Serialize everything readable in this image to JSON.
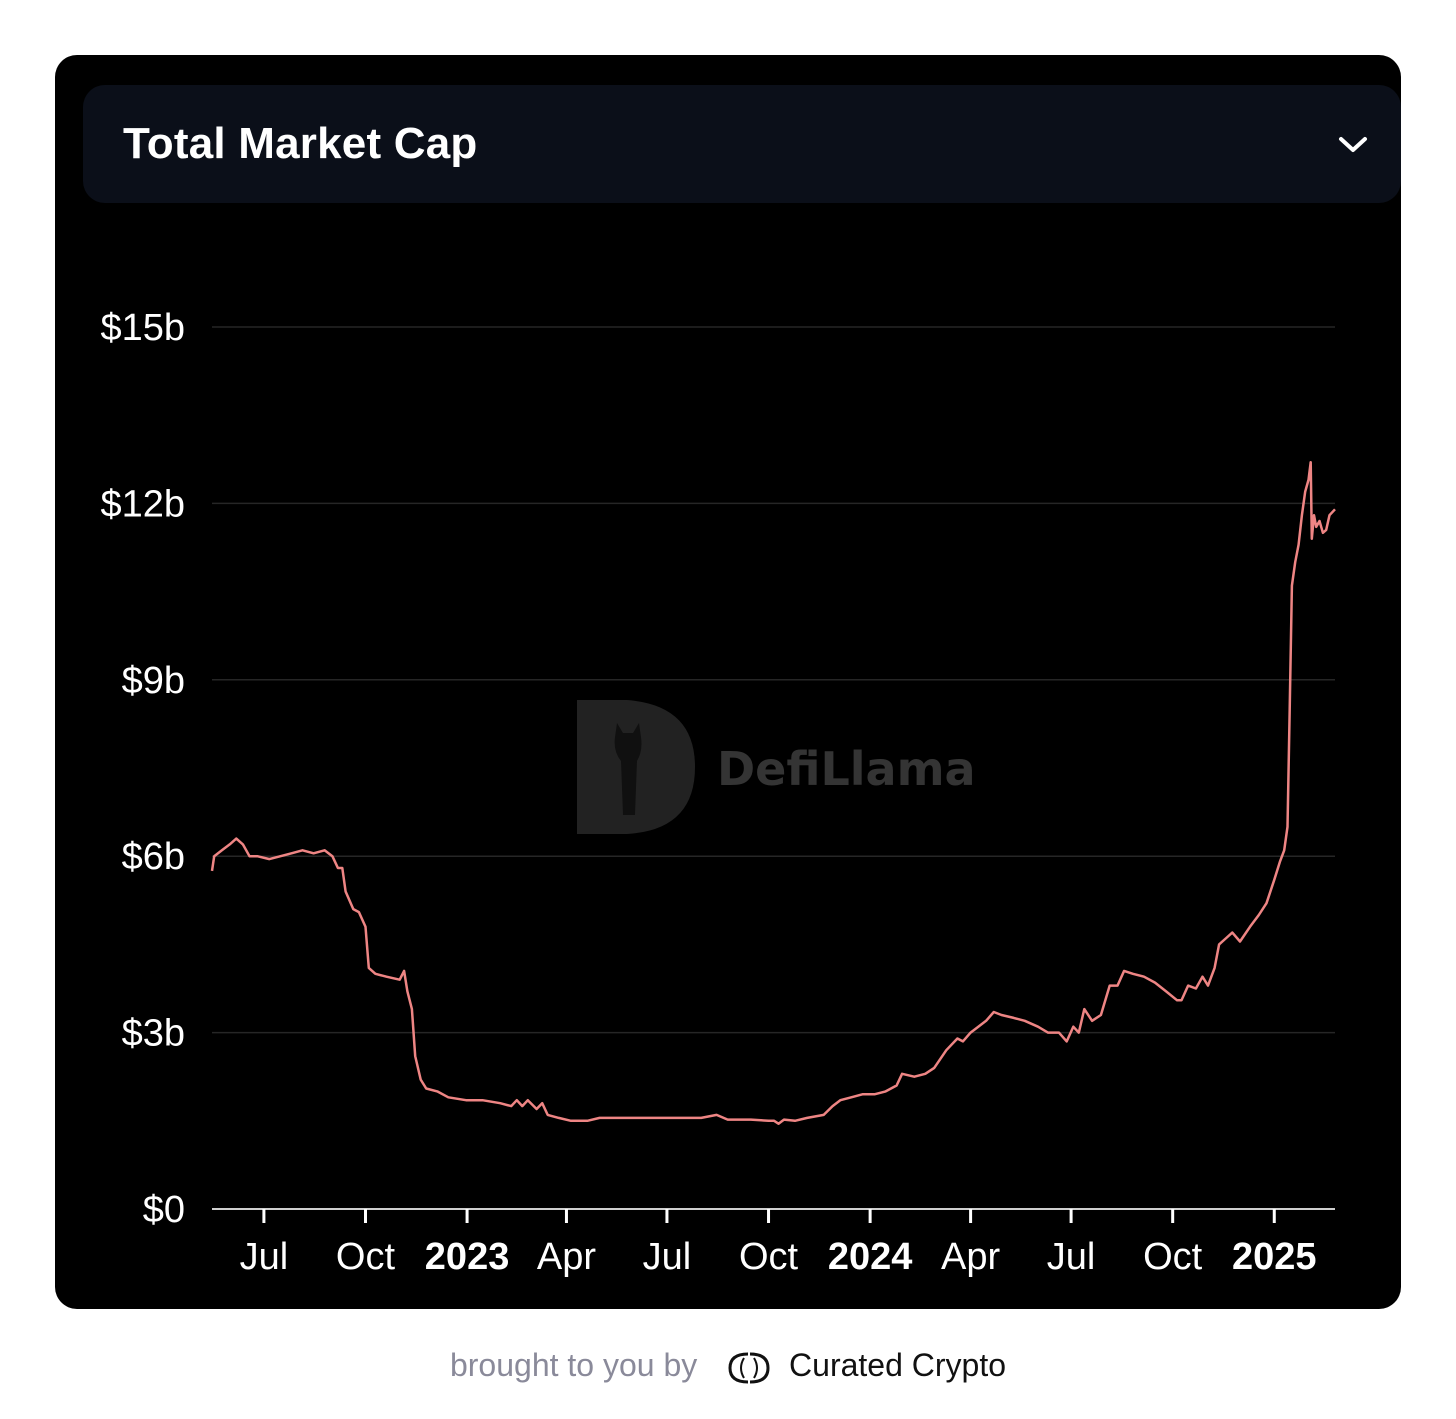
{
  "header": {
    "title": "Total Market Cap",
    "dropdown_icon": "chevron-down-icon"
  },
  "watermark": {
    "text": "DefiLlama"
  },
  "footer": {
    "prefix": "brought to you by",
    "brand": "Curated Crypto"
  },
  "colors": {
    "line": "#ee8584",
    "background": "#000000",
    "header_bg": "#0b0f19",
    "grid": "#262626"
  },
  "chart_data": {
    "type": "line",
    "title": "Total Market Cap",
    "xlabel": "",
    "ylabel": "",
    "x_range": [
      "2022-05-15",
      "2025-02-25"
    ],
    "ylim": [
      0,
      15
    ],
    "y_unit": "billion USD",
    "y_ticks": [
      {
        "value": 0,
        "label": "$0"
      },
      {
        "value": 3,
        "label": "$3b"
      },
      {
        "value": 6,
        "label": "$6b"
      },
      {
        "value": 9,
        "label": "$9b"
      },
      {
        "value": 12,
        "label": "$12b"
      },
      {
        "value": 15,
        "label": "$15b"
      }
    ],
    "x_ticks": [
      {
        "date": "2022-07-01",
        "label": "Jul",
        "bold": false
      },
      {
        "date": "2022-10-01",
        "label": "Oct",
        "bold": false
      },
      {
        "date": "2023-01-01",
        "label": "2023",
        "bold": true
      },
      {
        "date": "2023-04-01",
        "label": "Apr",
        "bold": false
      },
      {
        "date": "2023-07-01",
        "label": "Jul",
        "bold": false
      },
      {
        "date": "2023-10-01",
        "label": "Oct",
        "bold": false
      },
      {
        "date": "2024-01-01",
        "label": "2024",
        "bold": true
      },
      {
        "date": "2024-04-01",
        "label": "Apr",
        "bold": false
      },
      {
        "date": "2024-07-01",
        "label": "Jul",
        "bold": false
      },
      {
        "date": "2024-10-01",
        "label": "Oct",
        "bold": false
      },
      {
        "date": "2025-01-01",
        "label": "2025",
        "bold": true
      }
    ],
    "grid": true,
    "legend": "none",
    "series": [
      {
        "points": [
          [
            "2022-05-15",
            5.75
          ],
          [
            "2022-05-17",
            6.0
          ],
          [
            "2022-05-24",
            6.1
          ],
          [
            "2022-05-31",
            6.2
          ],
          [
            "2022-06-06",
            6.3
          ],
          [
            "2022-06-12",
            6.2
          ],
          [
            "2022-06-18",
            6.0
          ],
          [
            "2022-06-25",
            6.0
          ],
          [
            "2022-07-06",
            5.95
          ],
          [
            "2022-07-16",
            6.0
          ],
          [
            "2022-07-26",
            6.05
          ],
          [
            "2022-08-05",
            6.1
          ],
          [
            "2022-08-15",
            6.05
          ],
          [
            "2022-08-25",
            6.1
          ],
          [
            "2022-09-01",
            6.0
          ],
          [
            "2022-09-06",
            5.8
          ],
          [
            "2022-09-10",
            5.8
          ],
          [
            "2022-09-13",
            5.4
          ],
          [
            "2022-09-20",
            5.1
          ],
          [
            "2022-09-25",
            5.05
          ],
          [
            "2022-10-01",
            4.8
          ],
          [
            "2022-10-04",
            4.1
          ],
          [
            "2022-10-10",
            4.0
          ],
          [
            "2022-10-20",
            3.95
          ],
          [
            "2022-11-01",
            3.9
          ],
          [
            "2022-11-05",
            4.05
          ],
          [
            "2022-11-08",
            3.7
          ],
          [
            "2022-11-12",
            3.4
          ],
          [
            "2022-11-15",
            2.6
          ],
          [
            "2022-11-20",
            2.2
          ],
          [
            "2022-11-25",
            2.05
          ],
          [
            "2022-12-05",
            2.0
          ],
          [
            "2022-12-15",
            1.9
          ],
          [
            "2022-12-31",
            1.85
          ],
          [
            "2023-01-15",
            1.85
          ],
          [
            "2023-01-31",
            1.8
          ],
          [
            "2023-02-10",
            1.75
          ],
          [
            "2023-02-15",
            1.85
          ],
          [
            "2023-02-20",
            1.75
          ],
          [
            "2023-02-25",
            1.85
          ],
          [
            "2023-03-05",
            1.7
          ],
          [
            "2023-03-10",
            1.8
          ],
          [
            "2023-03-15",
            1.6
          ],
          [
            "2023-03-25",
            1.55
          ],
          [
            "2023-04-05",
            1.5
          ],
          [
            "2023-04-20",
            1.5
          ],
          [
            "2023-05-01",
            1.55
          ],
          [
            "2023-06-01",
            1.55
          ],
          [
            "2023-07-01",
            1.55
          ],
          [
            "2023-08-01",
            1.55
          ],
          [
            "2023-08-15",
            1.6
          ],
          [
            "2023-08-25",
            1.52
          ],
          [
            "2023-09-15",
            1.52
          ],
          [
            "2023-10-01",
            1.5
          ],
          [
            "2023-10-06",
            1.5
          ],
          [
            "2023-10-10",
            1.45
          ],
          [
            "2023-10-15",
            1.52
          ],
          [
            "2023-10-25",
            1.5
          ],
          [
            "2023-11-05",
            1.55
          ],
          [
            "2023-11-20",
            1.6
          ],
          [
            "2023-11-28",
            1.75
          ],
          [
            "2023-12-05",
            1.85
          ],
          [
            "2023-12-15",
            1.9
          ],
          [
            "2023-12-25",
            1.95
          ],
          [
            "2024-01-05",
            1.95
          ],
          [
            "2024-01-15",
            2.0
          ],
          [
            "2024-01-25",
            2.1
          ],
          [
            "2024-01-30",
            2.3
          ],
          [
            "2024-02-10",
            2.25
          ],
          [
            "2024-02-20",
            2.3
          ],
          [
            "2024-02-28",
            2.4
          ],
          [
            "2024-03-10",
            2.7
          ],
          [
            "2024-03-20",
            2.9
          ],
          [
            "2024-03-25",
            2.85
          ],
          [
            "2024-04-01",
            3.0
          ],
          [
            "2024-04-08",
            3.1
          ],
          [
            "2024-04-15",
            3.2
          ],
          [
            "2024-04-22",
            3.35
          ],
          [
            "2024-04-29",
            3.3
          ],
          [
            "2024-05-10",
            3.25
          ],
          [
            "2024-05-20",
            3.2
          ],
          [
            "2024-06-01",
            3.1
          ],
          [
            "2024-06-10",
            3.0
          ],
          [
            "2024-06-20",
            3.0
          ],
          [
            "2024-06-27",
            2.85
          ],
          [
            "2024-07-03",
            3.1
          ],
          [
            "2024-07-08",
            3.0
          ],
          [
            "2024-07-13",
            3.4
          ],
          [
            "2024-07-20",
            3.2
          ],
          [
            "2024-07-28",
            3.3
          ],
          [
            "2024-08-05",
            3.8
          ],
          [
            "2024-08-12",
            3.8
          ],
          [
            "2024-08-18",
            4.05
          ],
          [
            "2024-08-26",
            4.0
          ],
          [
            "2024-09-05",
            3.95
          ],
          [
            "2024-09-15",
            3.85
          ],
          [
            "2024-09-25",
            3.7
          ],
          [
            "2024-10-05",
            3.55
          ],
          [
            "2024-10-09",
            3.55
          ],
          [
            "2024-10-15",
            3.8
          ],
          [
            "2024-10-22",
            3.75
          ],
          [
            "2024-10-28",
            3.95
          ],
          [
            "2024-11-02",
            3.8
          ],
          [
            "2024-11-08",
            4.1
          ],
          [
            "2024-11-12",
            4.5
          ],
          [
            "2024-11-18",
            4.6
          ],
          [
            "2024-11-24",
            4.7
          ],
          [
            "2024-12-01",
            4.55
          ],
          [
            "2024-12-10",
            4.8
          ],
          [
            "2024-12-18",
            5.0
          ],
          [
            "2024-12-25",
            5.2
          ],
          [
            "2025-01-01",
            5.6
          ],
          [
            "2025-01-06",
            5.9
          ],
          [
            "2025-01-10",
            6.1
          ],
          [
            "2025-01-13",
            6.5
          ],
          [
            "2025-01-15",
            8.5
          ],
          [
            "2025-01-17",
            10.6
          ],
          [
            "2025-01-20",
            11.0
          ],
          [
            "2025-01-23",
            11.3
          ],
          [
            "2025-01-26",
            11.8
          ],
          [
            "2025-01-29",
            12.2
          ],
          [
            "2025-02-01",
            12.4
          ],
          [
            "2025-02-03",
            12.7
          ],
          [
            "2025-02-04",
            11.4
          ],
          [
            "2025-02-06",
            11.8
          ],
          [
            "2025-02-08",
            11.6
          ],
          [
            "2025-02-11",
            11.7
          ],
          [
            "2025-02-14",
            11.5
          ],
          [
            "2025-02-17",
            11.55
          ],
          [
            "2025-02-20",
            11.8
          ],
          [
            "2025-02-25",
            11.9
          ]
        ]
      }
    ]
  }
}
